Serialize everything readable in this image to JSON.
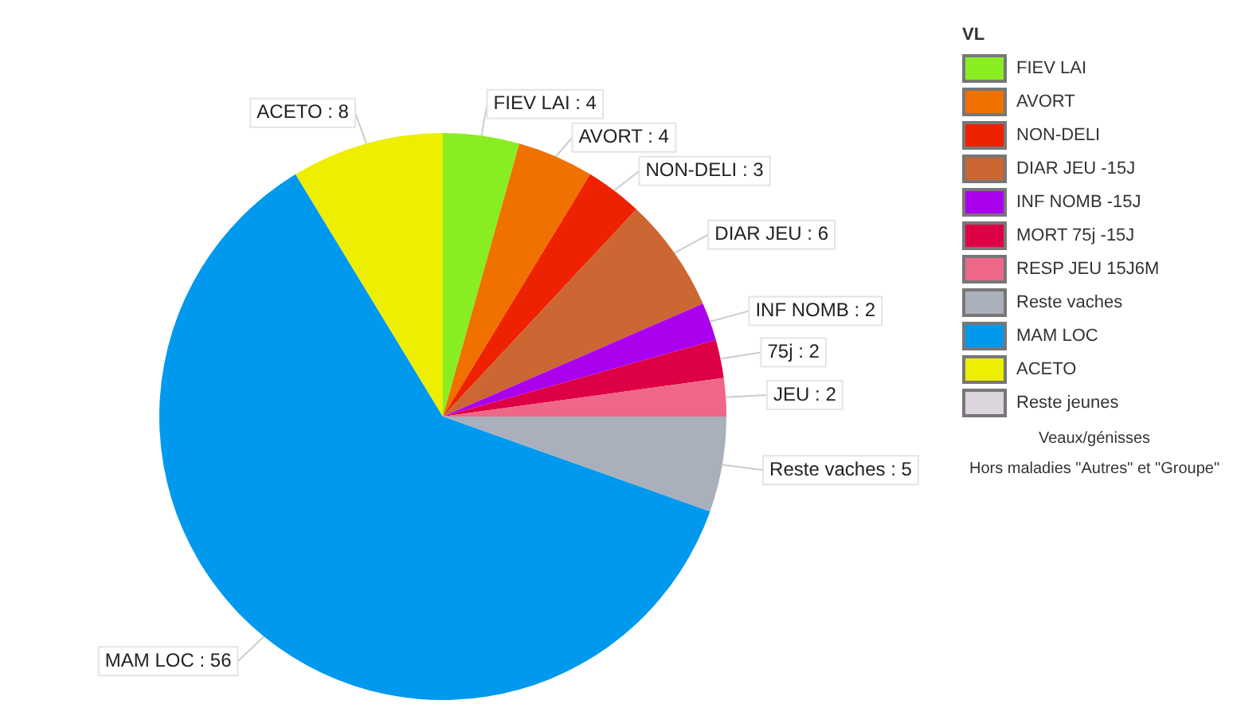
{
  "chart_data": {
    "type": "pie",
    "legend_title": "VL",
    "legend": "right",
    "categories": [
      "FIEV LAI",
      "AVORT",
      "NON-DELI",
      "DIAR JEU -15J",
      "INF NOMB -15J",
      "MORT 75j -15J",
      "RESP JEU 15J6M",
      "Reste vaches",
      "MAM LOC",
      "ACETO",
      "Reste jeunes"
    ],
    "values": [
      4,
      4,
      3,
      6,
      2,
      2,
      2,
      5,
      56,
      8,
      0
    ],
    "value_labels": [
      "FIEV LAI : 4",
      "AVORT : 4",
      "NON-DELI : 3",
      "DIAR JEU : 6",
      "INF NOMB : 2",
      "75j : 2",
      "JEU : 2",
      "Reste vaches : 5",
      "MAM LOC : 56",
      "ACETO : 8",
      null
    ],
    "colors": [
      "#88ee22",
      "#f07000",
      "#ee2200",
      "#cc6633",
      "#aa00ee",
      "#dd0044",
      "#ee6688",
      "#aab0bb",
      "#0099ee",
      "#eeee00",
      "#ddd5dd"
    ],
    "annotations": [
      "Veaux/génisses",
      "Hors maladies \"Autres\" et \"Groupe\""
    ]
  }
}
